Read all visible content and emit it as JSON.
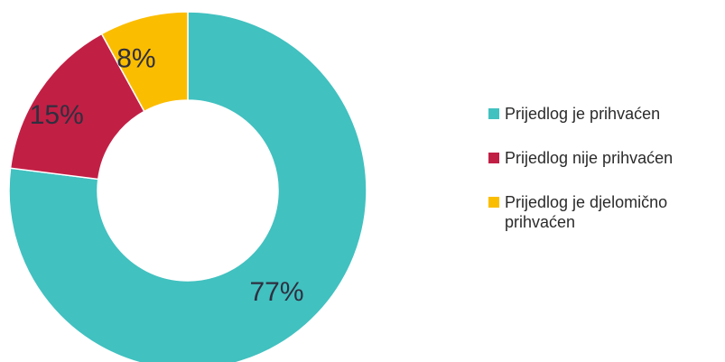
{
  "chart_data": {
    "type": "pie",
    "donut": true,
    "categories": [
      "Prijedlog je prihvaćen",
      "Prijedlog nije prihvaćen",
      "Prijedlog je djelomično prihvaćen"
    ],
    "values": [
      77,
      15,
      8
    ],
    "data_labels": [
      "77%",
      "15%",
      "8%"
    ],
    "colors": [
      "#41c1c0",
      "#c21f45",
      "#fbbd00"
    ],
    "legend_position": "right"
  }
}
